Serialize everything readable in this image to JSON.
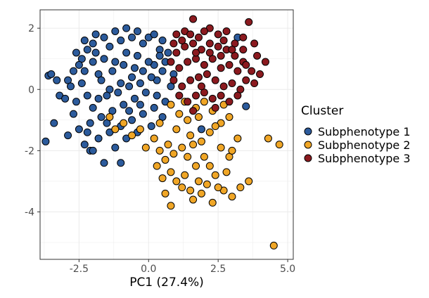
{
  "chart_data": {
    "type": "scatter",
    "title": "",
    "xlabel": "PC1 (27.4%)",
    "ylabel": "",
    "xlim": [
      -3.9,
      5.2
    ],
    "ylim": [
      -5.55,
      2.6
    ],
    "x_ticks": [
      -2.5,
      0.0,
      2.5,
      5.0
    ],
    "x_tick_labels": [
      "-2.5",
      "0.0",
      "2.5",
      "5.0"
    ],
    "y_ticks": [
      -4,
      -2,
      0,
      2
    ],
    "y_tick_labels": [
      "-4",
      "-2",
      "0",
      "2"
    ],
    "grid": true,
    "legend": {
      "title": "Cluster",
      "placement": "right"
    },
    "series": [
      {
        "name": "Subphenotype 1",
        "color": "#2c5b9c",
        "points": [
          [
            -3.6,
            0.45
          ],
          [
            -3.5,
            0.5
          ],
          [
            -3.3,
            0.3
          ],
          [
            -3.4,
            -1.1
          ],
          [
            -3.7,
            -1.7
          ],
          [
            -3.2,
            -0.2
          ],
          [
            -2.9,
            0.3
          ],
          [
            -2.7,
            0.6
          ],
          [
            -2.6,
            1.2
          ],
          [
            -2.4,
            1.0
          ],
          [
            -2.3,
            1.6
          ],
          [
            -2.2,
            1.3
          ],
          [
            -2.0,
            1.5
          ],
          [
            -1.9,
            1.8
          ],
          [
            -1.6,
            1.7
          ],
          [
            -1.4,
            1.4
          ],
          [
            -1.2,
            1.9
          ],
          [
            -1.0,
            1.6
          ],
          [
            -0.8,
            2.0
          ],
          [
            -0.6,
            1.7
          ],
          [
            -0.4,
            1.9
          ],
          [
            -0.2,
            1.5
          ],
          [
            0.0,
            1.7
          ],
          [
            0.2,
            1.8
          ],
          [
            0.5,
            1.6
          ],
          [
            -0.8,
            1.2
          ],
          [
            -1.2,
            0.9
          ],
          [
            -1.6,
            1.0
          ],
          [
            -2.0,
            0.9
          ],
          [
            -2.5,
            0.8
          ],
          [
            -2.8,
            0.1
          ],
          [
            -3.0,
            -0.3
          ],
          [
            -2.6,
            -0.4
          ],
          [
            -2.2,
            -0.2
          ],
          [
            -1.8,
            -0.3
          ],
          [
            -1.4,
            0.0
          ],
          [
            -1.0,
            0.2
          ],
          [
            -0.6,
            0.4
          ],
          [
            -0.2,
            0.6
          ],
          [
            0.2,
            0.8
          ],
          [
            0.6,
            0.9
          ],
          [
            0.3,
            0.3
          ],
          [
            -0.1,
            -0.1
          ],
          [
            -0.5,
            -0.3
          ],
          [
            -0.9,
            -0.5
          ],
          [
            -1.3,
            -0.7
          ],
          [
            -1.7,
            -0.9
          ],
          [
            -2.1,
            -1.1
          ],
          [
            -2.5,
            -1.3
          ],
          [
            -2.9,
            -1.5
          ],
          [
            -2.3,
            -1.8
          ],
          [
            -2.1,
            -2.0
          ],
          [
            -1.8,
            -1.6
          ],
          [
            -1.4,
            -1.4
          ],
          [
            -1.0,
            -1.2
          ],
          [
            -0.6,
            -1.0
          ],
          [
            -0.2,
            -0.8
          ],
          [
            0.2,
            -0.6
          ],
          [
            0.6,
            -0.4
          ],
          [
            0.8,
            0.1
          ],
          [
            0.9,
            0.5
          ],
          [
            0.7,
            1.2
          ],
          [
            0.4,
            1.3
          ],
          [
            -0.4,
            1.1
          ],
          [
            -1.8,
            0.5
          ],
          [
            -2.4,
            0.2
          ],
          [
            -2.0,
            -0.6
          ],
          [
            -1.5,
            -0.2
          ],
          [
            -1.1,
            -0.1
          ],
          [
            -0.7,
            0.1
          ],
          [
            -0.3,
            0.2
          ],
          [
            0.1,
            0.4
          ],
          [
            0.5,
            0.6
          ],
          [
            0.0,
            0.9
          ],
          [
            -0.5,
            0.7
          ],
          [
            -1.3,
            0.6
          ],
          [
            -1.7,
            0.3
          ],
          [
            -2.3,
            0.6
          ],
          [
            -2.7,
            -0.8
          ],
          [
            -1.2,
            -1.9
          ],
          [
            -0.8,
            -1.6
          ],
          [
            -0.4,
            -1.4
          ],
          [
            0.1,
            -1.2
          ],
          [
            -1.6,
            -2.4
          ],
          [
            -1.0,
            -2.4
          ],
          [
            -2.0,
            -2.0
          ],
          [
            -0.3,
            -0.5
          ],
          [
            0.3,
            -0.2
          ],
          [
            -1.9,
            1.2
          ],
          [
            -0.9,
            0.8
          ],
          [
            0.4,
            1.1
          ],
          [
            -2.2,
            -1.4
          ],
          [
            -1.5,
            -1.1
          ],
          [
            -0.7,
            -0.7
          ],
          [
            0.5,
            -0.9
          ],
          [
            3.2,
            1.7
          ],
          [
            3.5,
            -0.55
          ],
          [
            1.9,
            -1.3
          ]
        ]
      },
      {
        "name": "Subphenotype 2",
        "color": "#f0a626",
        "points": [
          [
            0.8,
            -0.5
          ],
          [
            1.1,
            -0.8
          ],
          [
            1.4,
            -1.0
          ],
          [
            1.7,
            -0.6
          ],
          [
            2.0,
            -0.4
          ],
          [
            2.3,
            -0.7
          ],
          [
            2.6,
            -1.1
          ],
          [
            2.9,
            -0.9
          ],
          [
            2.2,
            -1.4
          ],
          [
            1.9,
            -1.7
          ],
          [
            1.5,
            -1.5
          ],
          [
            1.2,
            -1.9
          ],
          [
            0.9,
            -2.1
          ],
          [
            0.6,
            -2.3
          ],
          [
            0.3,
            -2.5
          ],
          [
            0.5,
            -2.9
          ],
          [
            0.8,
            -2.7
          ],
          [
            1.0,
            -3.0
          ],
          [
            1.3,
            -2.8
          ],
          [
            1.5,
            -3.3
          ],
          [
            1.8,
            -3.0
          ],
          [
            2.1,
            -3.1
          ],
          [
            2.4,
            -2.8
          ],
          [
            2.7,
            -3.3
          ],
          [
            3.0,
            -3.5
          ],
          [
            3.3,
            -3.2
          ],
          [
            2.9,
            -2.2
          ],
          [
            2.6,
            -1.9
          ],
          [
            3.2,
            -1.6
          ],
          [
            3.0,
            -2.0
          ],
          [
            1.7,
            -2.5
          ],
          [
            2.0,
            -2.2
          ],
          [
            1.4,
            -2.2
          ],
          [
            0.2,
            -1.6
          ],
          [
            -0.3,
            -1.3
          ],
          [
            -0.6,
            -1.5
          ],
          [
            -0.9,
            -1.1
          ],
          [
            -1.2,
            -1.3
          ],
          [
            -1.4,
            -0.9
          ],
          [
            1.0,
            -1.3
          ],
          [
            0.4,
            -1.1
          ],
          [
            1.6,
            -3.6
          ],
          [
            2.3,
            -3.7
          ],
          [
            0.8,
            -3.8
          ],
          [
            0.6,
            -3.4
          ],
          [
            3.6,
            -3.0
          ],
          [
            4.3,
            -1.6
          ],
          [
            4.7,
            -1.8
          ],
          [
            4.5,
            -5.1
          ],
          [
            2.5,
            -3.2
          ],
          [
            1.9,
            -3.4
          ],
          [
            2.8,
            -2.7
          ],
          [
            1.2,
            -3.2
          ],
          [
            2.2,
            -2.5
          ],
          [
            0.7,
            -1.8
          ],
          [
            1.6,
            -1.8
          ],
          [
            2.4,
            -1.2
          ],
          [
            1.8,
            -0.9
          ],
          [
            2.7,
            -0.5
          ],
          [
            1.3,
            -0.4
          ],
          [
            -0.1,
            -1.9
          ],
          [
            0.4,
            -2.0
          ]
        ]
      },
      {
        "name": "Subphenotype 3",
        "color": "#8b1a1f",
        "points": [
          [
            1.6,
            2.3
          ],
          [
            1.0,
            1.8
          ],
          [
            1.3,
            1.9
          ],
          [
            1.8,
            1.7
          ],
          [
            2.2,
            2.0
          ],
          [
            2.5,
            1.8
          ],
          [
            2.8,
            1.9
          ],
          [
            3.1,
            1.5
          ],
          [
            3.4,
            1.7
          ],
          [
            3.6,
            2.2
          ],
          [
            3.9,
            1.1
          ],
          [
            4.2,
            0.9
          ],
          [
            4.0,
            0.5
          ],
          [
            3.7,
            0.6
          ],
          [
            3.4,
            0.9
          ],
          [
            3.1,
            1.1
          ],
          [
            2.8,
            1.3
          ],
          [
            2.5,
            1.4
          ],
          [
            2.2,
            1.5
          ],
          [
            1.9,
            1.3
          ],
          [
            1.6,
            1.5
          ],
          [
            1.3,
            1.4
          ],
          [
            1.0,
            1.2
          ],
          [
            0.8,
            0.9
          ],
          [
            1.1,
            0.7
          ],
          [
            1.4,
            0.9
          ],
          [
            1.7,
            1.0
          ],
          [
            2.0,
            0.8
          ],
          [
            2.3,
            1.0
          ],
          [
            2.6,
            0.7
          ],
          [
            2.9,
            0.8
          ],
          [
            3.2,
            0.6
          ],
          [
            3.5,
            0.3
          ],
          [
            3.3,
            0.0
          ],
          [
            3.0,
            0.2
          ],
          [
            2.7,
            0.1
          ],
          [
            2.4,
            0.3
          ],
          [
            2.1,
            0.5
          ],
          [
            1.8,
            0.4
          ],
          [
            1.5,
            0.3
          ],
          [
            1.2,
            0.1
          ],
          [
            0.9,
            0.3
          ],
          [
            1.1,
            -0.2
          ],
          [
            1.4,
            -0.4
          ],
          [
            1.7,
            -0.2
          ],
          [
            2.0,
            -0.1
          ],
          [
            2.3,
            -0.3
          ],
          [
            2.6,
            -0.2
          ],
          [
            2.9,
            -0.4
          ],
          [
            3.2,
            -0.2
          ],
          [
            3.5,
            0.8
          ],
          [
            3.8,
            1.5
          ],
          [
            2.0,
            1.9
          ],
          [
            1.5,
            1.8
          ],
          [
            2.7,
            1.6
          ],
          [
            3.0,
            1.3
          ],
          [
            1.2,
            1.6
          ],
          [
            1.9,
            0.1
          ],
          [
            2.4,
            -0.6
          ],
          [
            1.6,
            -0.7
          ],
          [
            3.8,
            0.2
          ],
          [
            0.9,
            1.5
          ],
          [
            2.2,
            1.2
          ],
          [
            2.6,
            1.1
          ],
          [
            1.7,
            1.2
          ],
          [
            3.4,
            1.3
          ]
        ]
      }
    ]
  }
}
